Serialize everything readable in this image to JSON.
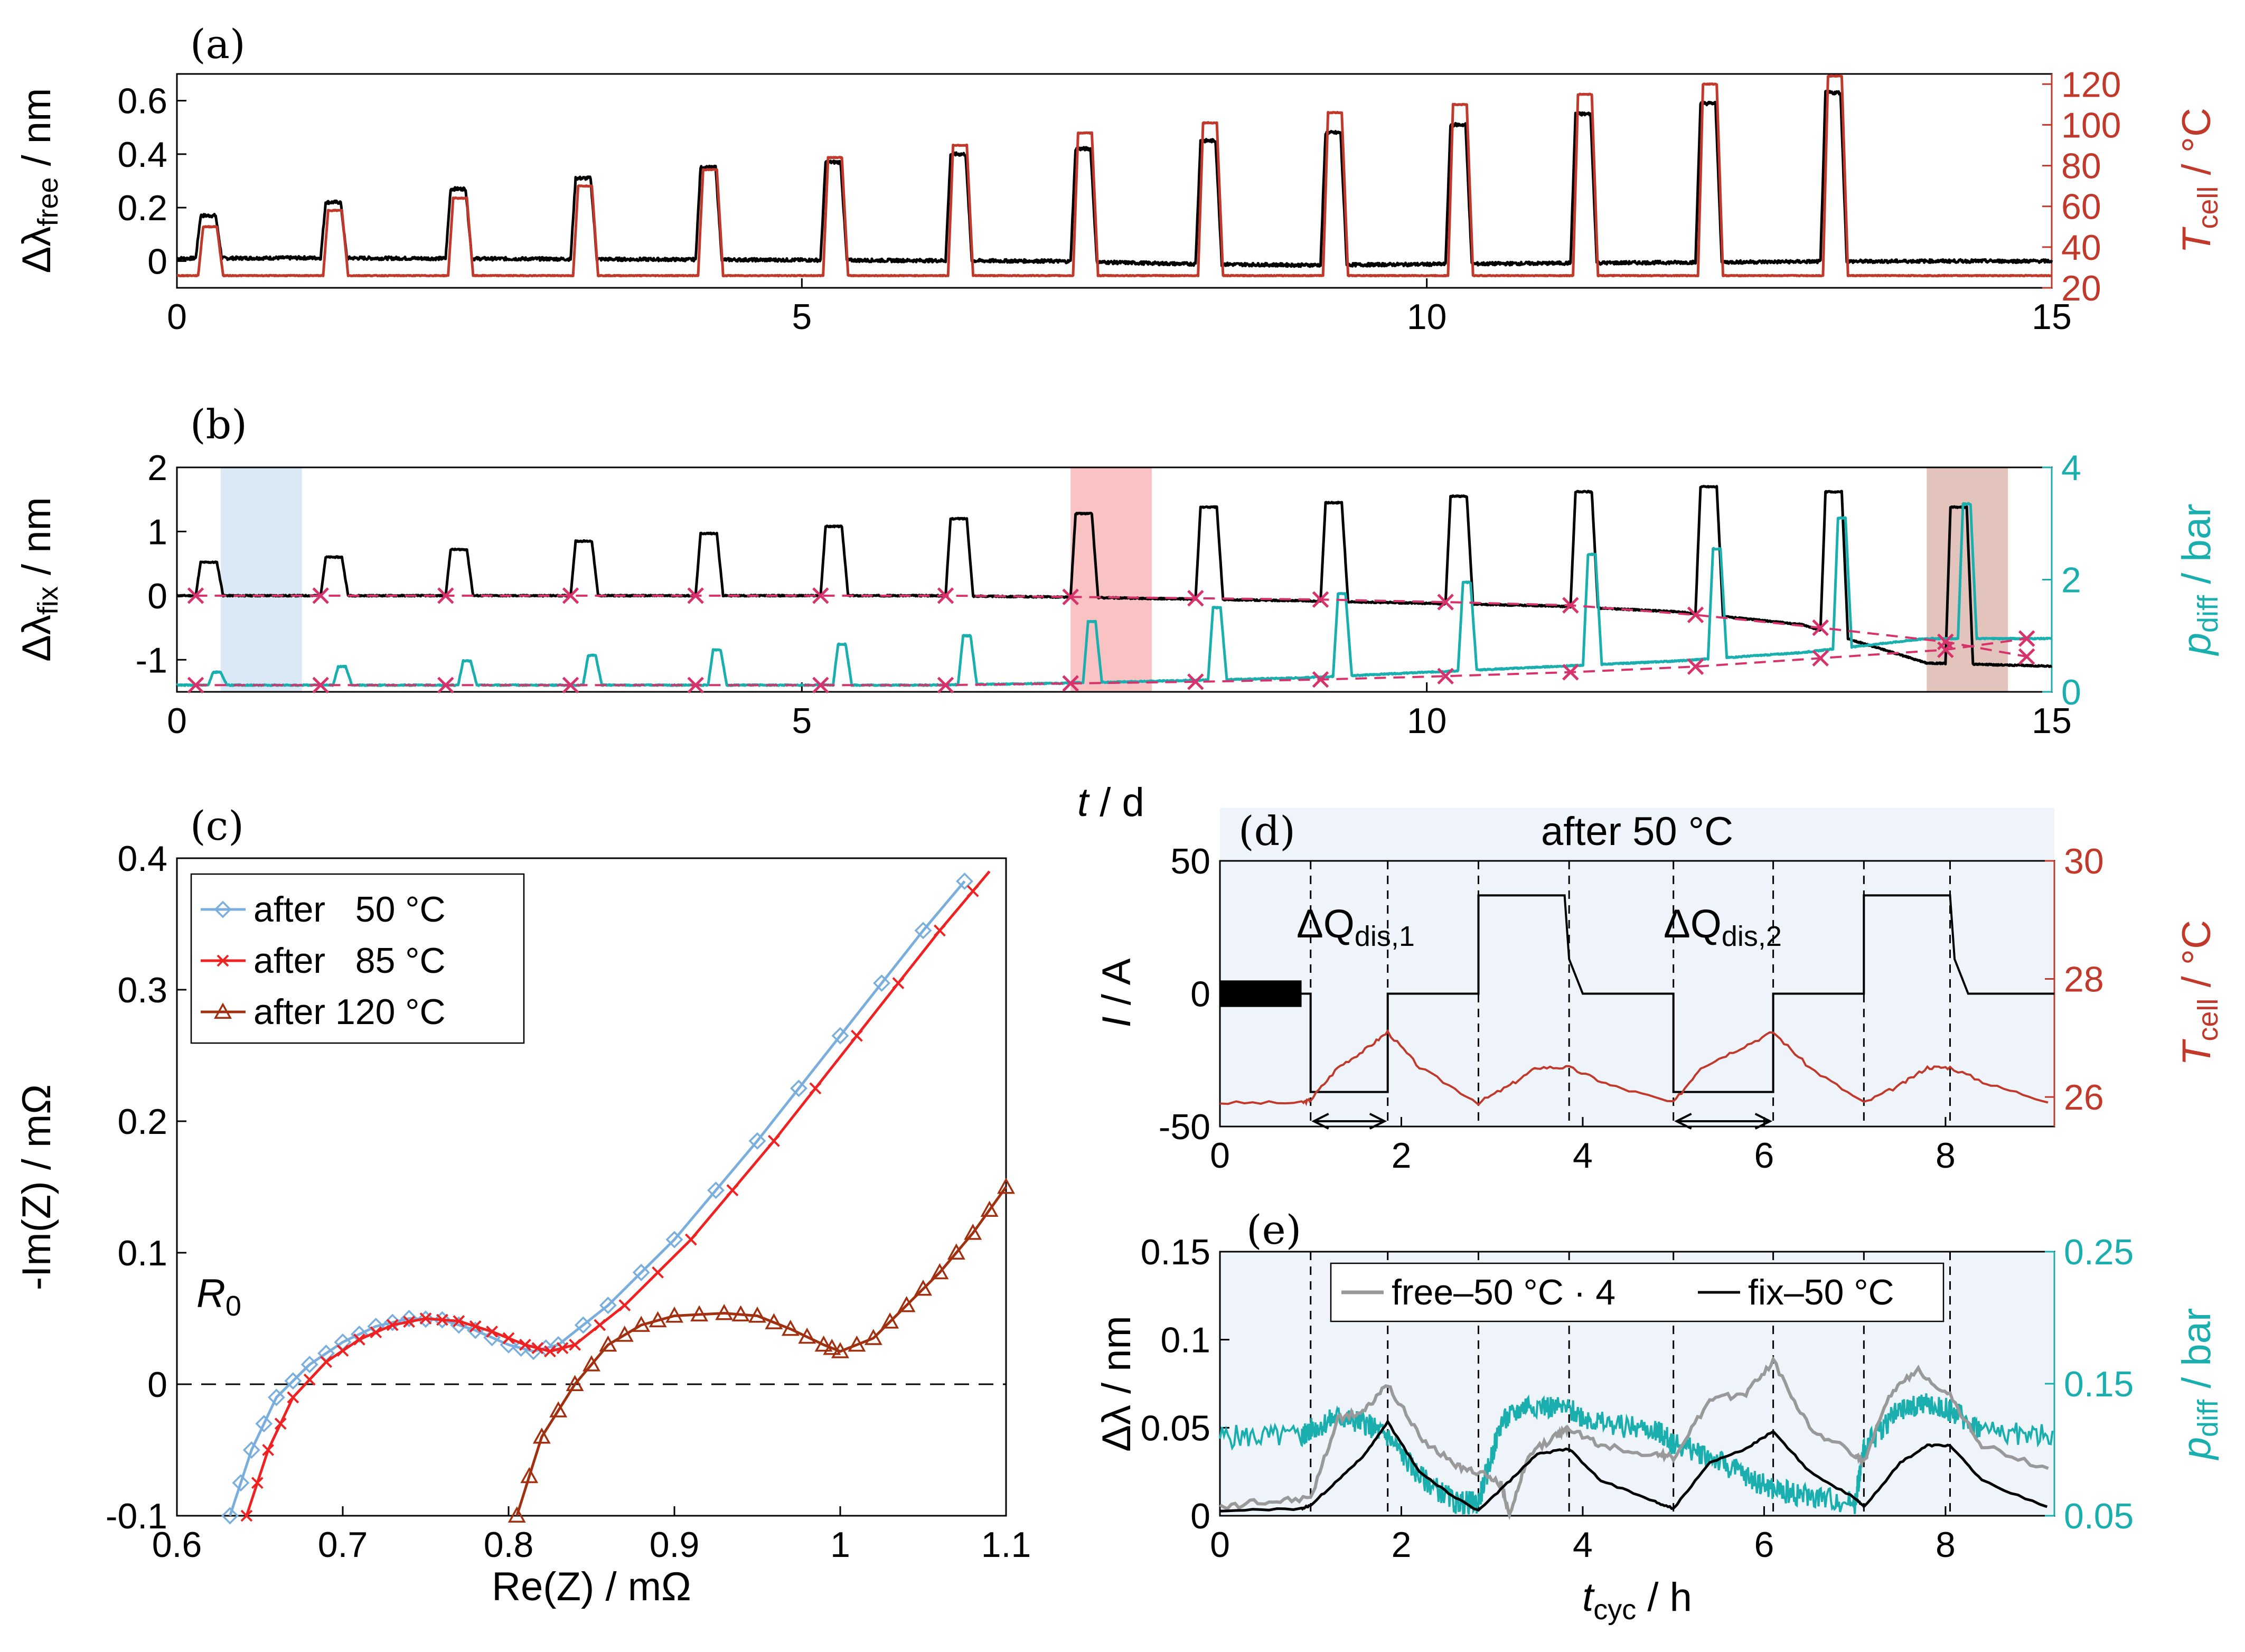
{
  "colors": {
    "black": "#000000",
    "red": "#c0392b",
    "teal": "#1aaeae",
    "magenta": "#d6336c",
    "lightblue": "#7aaedc",
    "brightred": "#ee2222",
    "darkred": "#a03010",
    "gray": "#999999",
    "shade_blue": "#dbe8f5",
    "shade_red": "#f9c3c3",
    "shade_brown": "#e2c4bc"
  },
  "labels": {
    "a": "(a)",
    "b": "(b)",
    "c": "(c)",
    "d": "(d)",
    "e": "(e)",
    "a_ylabel_main": "Δλ",
    "a_ylabel_sub": "free",
    "a_ylabel_unit": " / nm",
    "a_y2label_main": "T",
    "a_y2label_sub": "cell",
    "a_y2label_unit": " / °C",
    "b_ylabel_main": "Δλ",
    "b_ylabel_sub": "fix",
    "b_ylabel_unit": " / nm",
    "b_y2label_main": "p",
    "b_y2label_sub": "diff",
    "b_y2label_unit": " / bar",
    "t_label_main": "t",
    "t_label_unit": " / d",
    "c_xlabel": "Re(Z) / mΩ",
    "c_ylabel": "-Im(Z) / mΩ",
    "c_R0_main": "R",
    "c_R0_sub": "0",
    "d_title": "after 50 °C",
    "d_ylabel_main": "I",
    "d_ylabel_unit": " / A",
    "d_y2label_main": "T",
    "d_y2label_sub": "cell",
    "d_y2label_unit": " / °C",
    "d_dq1_main": "ΔQ",
    "d_dq1_sub": "dis,1",
    "d_dq2_main": "ΔQ",
    "d_dq2_sub": "dis,2",
    "e_ylabel_main": "Δλ",
    "e_ylabel_unit": " / nm",
    "e_y2label_main": "p",
    "e_y2label_sub": "diff",
    "e_y2label_unit": " / bar",
    "e_xlabel_main": "t",
    "e_xlabel_sub": "cyc",
    "e_xlabel_unit": " / h",
    "c_leg": [
      "after   50 °C",
      "after   85 °C",
      "after 120 °C"
    ],
    "e_leg": [
      "free–50 °C · 4",
      "fix–50 °C"
    ]
  },
  "chart_data": [
    {
      "panel": "a",
      "type": "line",
      "xlim": [
        0,
        15
      ],
      "ylim": [
        -0.1,
        0.7
      ],
      "y2lim": [
        20,
        125
      ],
      "xticks": [
        0,
        5,
        10,
        15
      ],
      "yticks": [
        0,
        0.2,
        0.4,
        0.6
      ],
      "y2ticks": [
        20,
        40,
        60,
        80,
        100,
        120
      ],
      "pulse_starts": [
        0.15,
        1.15,
        2.15,
        3.15,
        4.15,
        5.15,
        6.15,
        7.15,
        8.15,
        9.15,
        10.15,
        11.15,
        12.15,
        13.15
      ],
      "series": [
        {
          "name": "Δλ_free",
          "axis": "left",
          "baseline": [
            0.01,
            0.012,
            0.01,
            0.008,
            0.006,
            0.004,
            0.002,
            0.0,
            -0.01,
            -0.015,
            -0.012,
            -0.008,
            -0.005,
            -0.002,
            0.0
          ],
          "peaks": [
            0.17,
            0.22,
            0.27,
            0.31,
            0.35,
            0.37,
            0.4,
            0.42,
            0.45,
            0.48,
            0.51,
            0.55,
            0.59,
            0.63
          ]
        },
        {
          "name": "T_cell",
          "axis": "right",
          "baseline": 26,
          "peaks": [
            50,
            58,
            64,
            70,
            78,
            84,
            90,
            96,
            101,
            106,
            110,
            115,
            120,
            124
          ]
        }
      ]
    },
    {
      "panel": "b",
      "type": "line",
      "xlim": [
        0,
        15
      ],
      "ylim": [
        -1.5,
        2
      ],
      "y2lim": [
        0,
        4
      ],
      "xticks": [
        0,
        5,
        10,
        15
      ],
      "yticks": [
        -1,
        0,
        1,
        2
      ],
      "y2ticks": [
        0,
        2,
        4
      ],
      "shaded": [
        {
          "x": [
            0.35,
            1.0
          ],
          "color": "shade_blue"
        },
        {
          "x": [
            7.15,
            7.8
          ],
          "color": "shade_red"
        },
        {
          "x": [
            14.0,
            14.65
          ],
          "color": "shade_brown"
        }
      ],
      "markers_x": [
        0.15,
        1.15,
        2.15,
        3.15,
        4.15,
        5.15,
        6.15,
        7.15,
        8.15,
        9.15,
        10.15,
        11.15,
        12.15,
        13.15,
        14.15,
        14.8
      ],
      "series": [
        {
          "name": "Δλ_fix",
          "axis": "left",
          "baseline": [
            0.0,
            0.0,
            0.0,
            0.0,
            0.0,
            0.0,
            0.0,
            -0.02,
            -0.05,
            -0.08,
            -0.12,
            -0.16,
            -0.25,
            -0.45,
            -1.05,
            -1.1
          ],
          "peaks": [
            0.52,
            0.6,
            0.72,
            0.85,
            0.97,
            1.08,
            1.2,
            1.28,
            1.38,
            1.45,
            1.55,
            1.62,
            1.7,
            1.62,
            1.38
          ]
        },
        {
          "name": "Δλ_fix markers",
          "axis": "left",
          "values": [
            0.0,
            0.0,
            0.0,
            0.0,
            0.0,
            0.0,
            0.0,
            -0.02,
            -0.04,
            -0.06,
            -0.1,
            -0.15,
            -0.3,
            -0.5,
            -0.72,
            -0.95
          ]
        },
        {
          "name": "p_diff",
          "axis": "right",
          "baseline": [
            0.12,
            0.12,
            0.12,
            0.12,
            0.12,
            0.12,
            0.12,
            0.15,
            0.2,
            0.25,
            0.35,
            0.45,
            0.55,
            0.7,
            0.95,
            0.95
          ],
          "peaks": [
            0.35,
            0.45,
            0.55,
            0.65,
            0.75,
            0.85,
            1.0,
            1.25,
            1.5,
            1.75,
            1.95,
            2.45,
            2.55,
            3.1,
            3.35
          ]
        },
        {
          "name": "p_diff markers",
          "axis": "right",
          "values": [
            0.12,
            0.12,
            0.12,
            0.12,
            0.12,
            0.12,
            0.12,
            0.15,
            0.18,
            0.22,
            0.28,
            0.35,
            0.45,
            0.6,
            0.75,
            0.95
          ]
        }
      ]
    },
    {
      "panel": "c",
      "type": "line",
      "xlabel": "Re(Z) / mΩ",
      "ylabel": "-Im(Z) / mΩ",
      "xlim": [
        0.6,
        1.1
      ],
      "ylim": [
        -0.1,
        0.4
      ],
      "xticks": [
        0.6,
        0.7,
        0.8,
        0.9,
        1.0,
        1.1
      ],
      "yticks": [
        -0.1,
        0,
        0.1,
        0.2,
        0.3,
        0.4
      ],
      "legend": "top-left",
      "series": [
        {
          "name": "after   50 °C",
          "x": [
            0.632,
            0.645,
            0.66,
            0.68,
            0.7,
            0.72,
            0.74,
            0.76,
            0.78,
            0.8,
            0.815,
            0.83,
            0.86,
            0.9,
            0.95,
            1.0,
            1.05,
            1.1
          ],
          "y": [
            -0.1,
            -0.05,
            -0.01,
            0.015,
            0.032,
            0.044,
            0.05,
            0.049,
            0.041,
            0.03,
            0.025,
            0.03,
            0.06,
            0.11,
            0.185,
            0.265,
            0.345,
            0.42
          ]
        },
        {
          "name": "after   85 °C",
          "x": [
            0.642,
            0.655,
            0.67,
            0.69,
            0.71,
            0.73,
            0.75,
            0.77,
            0.79,
            0.81,
            0.825,
            0.84,
            0.87,
            0.91,
            0.96,
            1.01,
            1.06,
            1.1
          ],
          "y": [
            -0.1,
            -0.05,
            -0.01,
            0.017,
            0.034,
            0.045,
            0.05,
            0.048,
            0.04,
            0.03,
            0.025,
            0.03,
            0.06,
            0.11,
            0.185,
            0.265,
            0.345,
            0.405
          ]
        },
        {
          "name": "after 120 °C",
          "x": [
            0.805,
            0.82,
            0.84,
            0.86,
            0.88,
            0.9,
            0.93,
            0.95,
            0.97,
            0.99,
            1.0,
            1.02,
            1.04,
            1.06,
            1.08,
            1.1
          ],
          "y": [
            -0.1,
            -0.04,
            0.0,
            0.03,
            0.045,
            0.052,
            0.054,
            0.052,
            0.042,
            0.03,
            0.025,
            0.035,
            0.06,
            0.085,
            0.115,
            0.15
          ]
        }
      ]
    },
    {
      "panel": "d",
      "type": "line",
      "xlim": [
        0,
        9.2
      ],
      "ylim": [
        -50,
        50
      ],
      "y2lim": [
        25.5,
        30
      ],
      "xticks": [
        0,
        2,
        4,
        6,
        8
      ],
      "yticks": [
        -50,
        0,
        50
      ],
      "y2ticks": [
        26,
        28,
        30
      ],
      "vlines": [
        1.0,
        1.85,
        2.85,
        3.85,
        5.0,
        6.1,
        7.1,
        8.05
      ],
      "series": [
        {
          "name": "I",
          "axis": "left",
          "x": [
            0,
            1.0,
            1.0,
            1.85,
            1.85,
            2.85,
            2.85,
            3.55,
            3.6,
            3.7,
            3.8,
            3.85,
            4.0,
            5.0,
            5.0,
            6.1,
            6.1,
            7.1,
            7.1,
            7.8,
            7.85,
            7.95,
            8.05,
            8.1,
            8.25,
            9.2
          ],
          "y": [
            0,
            0,
            -37,
            -37,
            0,
            0,
            37,
            37,
            37,
            37,
            37,
            13,
            0,
            0,
            -37,
            -37,
            0,
            0,
            37,
            37,
            37,
            37,
            37,
            13,
            0,
            0
          ]
        },
        {
          "name": "T_cell",
          "axis": "right",
          "x": [
            0,
            0.9,
            1.0,
            1.3,
            1.6,
            1.85,
            2.2,
            2.85,
            3.2,
            3.5,
            3.85,
            4.3,
            5.0,
            5.3,
            5.7,
            6.1,
            6.5,
            7.1,
            7.5,
            7.8,
            8.05,
            8.5,
            9.2
          ],
          "y": [
            25.9,
            25.9,
            25.95,
            26.5,
            26.8,
            27.1,
            26.5,
            25.9,
            26.2,
            26.5,
            26.5,
            26.2,
            25.9,
            26.5,
            26.8,
            27.1,
            26.5,
            25.9,
            26.2,
            26.5,
            26.5,
            26.2,
            25.9
          ]
        }
      ]
    },
    {
      "panel": "e",
      "type": "line",
      "xlim": [
        0,
        9.2
      ],
      "ylim": [
        0,
        0.15
      ],
      "y2lim": [
        0.05,
        0.25
      ],
      "xticks": [
        0,
        2,
        4,
        6,
        8
      ],
      "yticks": [
        0,
        0.05,
        0.1,
        0.15
      ],
      "y2ticks": [
        0.05,
        0.15,
        0.25
      ],
      "legend": "top",
      "vlines": [
        1.0,
        1.85,
        2.85,
        3.85,
        5.0,
        6.1,
        7.1,
        8.05
      ],
      "series": [
        {
          "name": "free–50 °C · 4",
          "axis": "left",
          "x": [
            0,
            0.5,
            1.0,
            1.3,
            1.6,
            1.85,
            2.2,
            2.6,
            2.85,
            3.1,
            3.2,
            3.4,
            3.7,
            3.85,
            4.2,
            4.8,
            5.0,
            5.4,
            5.8,
            6.1,
            6.5,
            7.0,
            7.1,
            7.4,
            7.7,
            8.05,
            8.4,
            9.2
          ],
          "y": [
            0.005,
            0.008,
            0.01,
            0.055,
            0.06,
            0.075,
            0.045,
            0.028,
            0.025,
            0.018,
            0.0,
            0.035,
            0.045,
            0.05,
            0.04,
            0.035,
            0.033,
            0.065,
            0.07,
            0.088,
            0.05,
            0.035,
            0.03,
            0.07,
            0.083,
            0.068,
            0.04,
            0.025
          ]
        },
        {
          "name": "fix–50 °C",
          "axis": "left",
          "x": [
            0,
            0.9,
            1.0,
            1.3,
            1.6,
            1.85,
            2.2,
            2.6,
            2.85,
            3.2,
            3.5,
            3.85,
            4.2,
            4.8,
            5.0,
            5.4,
            5.8,
            6.1,
            6.5,
            7.0,
            7.1,
            7.5,
            7.8,
            8.05,
            8.4,
            9.2
          ],
          "y": [
            0.003,
            0.004,
            0.006,
            0.02,
            0.035,
            0.053,
            0.025,
            0.01,
            0.003,
            0.02,
            0.035,
            0.038,
            0.02,
            0.008,
            0.004,
            0.03,
            0.038,
            0.048,
            0.025,
            0.01,
            0.005,
            0.03,
            0.04,
            0.04,
            0.02,
            0.003
          ]
        },
        {
          "name": "p_diff",
          "axis": "right",
          "x": [
            0,
            0.9,
            1.0,
            1.3,
            1.6,
            1.85,
            2.2,
            2.6,
            2.85,
            3.1,
            3.4,
            3.85,
            4.2,
            4.8,
            5.0,
            5.4,
            5.8,
            6.1,
            6.5,
            7.0,
            7.1,
            7.4,
            7.7,
            8.05,
            8.4,
            9.2
          ],
          "y": [
            0.11,
            0.11,
            0.115,
            0.125,
            0.12,
            0.11,
            0.08,
            0.06,
            0.06,
            0.12,
            0.135,
            0.13,
            0.12,
            0.115,
            0.105,
            0.095,
            0.08,
            0.07,
            0.065,
            0.06,
            0.1,
            0.125,
            0.135,
            0.13,
            0.115,
            0.11
          ]
        }
      ]
    }
  ]
}
